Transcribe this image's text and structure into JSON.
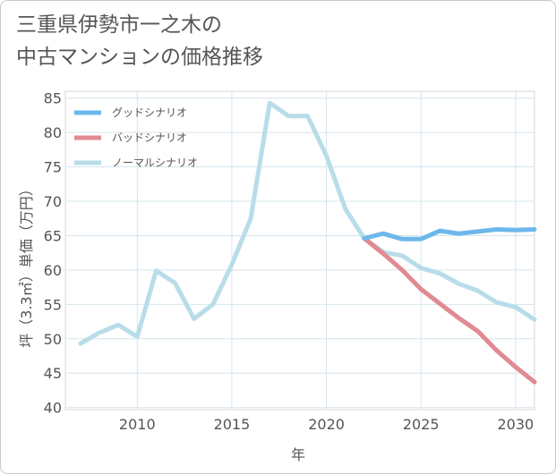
{
  "title": {
    "line1": "三重県伊勢市一之木の",
    "line2": "中古マンションの価格推移"
  },
  "chart_data": {
    "type": "line",
    "xlabel": "年",
    "ylabel": "坪（3.3㎡）単価（万円）",
    "xlim": [
      2006.2,
      2031
    ],
    "ylim": [
      39.7,
      86
    ],
    "xticks": [
      2010,
      2015,
      2020,
      2025,
      2030
    ],
    "yticks": [
      40,
      45,
      50,
      55,
      60,
      65,
      70,
      75,
      80,
      85
    ],
    "grid": true,
    "legend_position": "top-left",
    "series": [
      {
        "name": "グッドシナリオ",
        "color": "#6cb8ec",
        "x": [
          2022,
          2023,
          2024,
          2025,
          2026,
          2027,
          2028,
          2029,
          2030,
          2031
        ],
        "values": [
          64.6,
          65.3,
          64.5,
          64.5,
          65.7,
          65.3,
          65.6,
          65.9,
          65.8,
          65.9
        ]
      },
      {
        "name": "バッドシナリオ",
        "color": "#e08a92",
        "x": [
          2022,
          2023,
          2024,
          2025,
          2026,
          2027,
          2028,
          2029,
          2030,
          2031
        ],
        "values": [
          64.6,
          62.4,
          60.0,
          57.2,
          55.1,
          53.0,
          51.1,
          48.3,
          45.9,
          43.7
        ]
      },
      {
        "name": "ノーマルシナリオ",
        "color": "#b8dde9",
        "x": [
          2007,
          2008,
          2009,
          2010,
          2011,
          2012,
          2013,
          2014,
          2015,
          2016,
          2017,
          2018,
          2019,
          2020,
          2021,
          2022,
          2023,
          2024,
          2025,
          2026,
          2027,
          2028,
          2029,
          2030,
          2031
        ],
        "values": [
          49.3,
          50.9,
          52.0,
          50.3,
          59.9,
          58.1,
          52.9,
          55.0,
          60.8,
          67.5,
          84.3,
          82.4,
          82.4,
          76.6,
          68.9,
          64.6,
          62.6,
          62.1,
          60.3,
          59.5,
          58.0,
          57.0,
          55.3,
          54.6,
          52.8
        ]
      }
    ]
  }
}
